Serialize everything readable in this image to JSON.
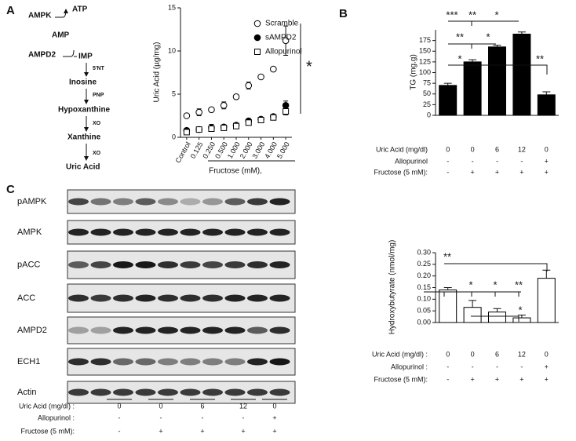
{
  "panels": [
    "A",
    "B",
    "C"
  ],
  "pathway": {
    "nodes": [
      "AMPK",
      "ATP",
      "AMP",
      "AMPD2",
      "IMP",
      "Inosine",
      "Hypoxanthine",
      "Xanthine",
      "Uric Acid"
    ],
    "enzymes": [
      "5'NT",
      "PNP",
      "XO",
      "XO"
    ]
  },
  "chart_data": [
    {
      "type": "scatter",
      "ylabel": "Uric Acid (µg/mg)",
      "xlabel": "Fructose (mM),",
      "categories": [
        "Control",
        "0.125",
        "0.250",
        "0.500",
        "1.000",
        "2.000",
        "3.000",
        "4.000",
        "5.000"
      ],
      "ylim": [
        0,
        15
      ],
      "yticks": [
        0,
        5,
        10,
        15
      ],
      "annotation": "*",
      "series": [
        {
          "name": "Scramble",
          "marker": "open-circle",
          "color": "#000000",
          "values": [
            2.5,
            2.9,
            3.2,
            3.7,
            4.7,
            6.0,
            7.0,
            7.9,
            11.2
          ],
          "errors": [
            0.2,
            0.4,
            0.2,
            0.4,
            0.2,
            0.4,
            0.2,
            0.2,
            1.7
          ]
        },
        {
          "name": "sAMPD2",
          "marker": "filled-circle",
          "color": "#000000",
          "values": [
            0.8,
            0.9,
            1.1,
            1.2,
            1.4,
            1.9,
            2.1,
            2.4,
            3.7
          ],
          "errors": [
            0.2,
            0.2,
            0.4,
            0.2,
            0.2,
            0.2,
            0.2,
            0.2,
            0.5
          ]
        },
        {
          "name": "Allopurinol",
          "marker": "open-square",
          "color": "#000000",
          "values": [
            0.6,
            0.9,
            1.0,
            1.1,
            1.3,
            1.7,
            2.0,
            2.3,
            3.0
          ],
          "errors": [
            0.2,
            0.2,
            0.2,
            0.2,
            0.2,
            0.2,
            0.2,
            0.2,
            0.4
          ]
        }
      ]
    },
    {
      "type": "bar",
      "ylabel": "TG (mg.g)",
      "color": "#000000",
      "outline": "#000000",
      "values": [
        70,
        125,
        160,
        190,
        48
      ],
      "errors": [
        5,
        5,
        4,
        5,
        7
      ],
      "ylim": [
        0,
        200
      ],
      "yticks": [
        0,
        25,
        50,
        75,
        100,
        125,
        150,
        175
      ],
      "significance": [
        "***",
        "**",
        "*",
        "**",
        "*",
        "*",
        "**"
      ],
      "conditions": [
        {
          "label": "Uric Acid (mg/dl)",
          "values": [
            0,
            0,
            6,
            12,
            0
          ]
        },
        {
          "label": "Allopurinol",
          "values": [
            "-",
            "-",
            "-",
            "-",
            "+"
          ]
        },
        {
          "label": "Fructose (5 mM):",
          "values": [
            "-",
            "+",
            "+",
            "+",
            "+"
          ]
        }
      ]
    },
    {
      "type": "bar",
      "ylabel": "Hydroxybutyrate (nmol/mg)",
      "color": "#ffffff",
      "outline": "#000000",
      "values": [
        0.14,
        0.065,
        0.045,
        0.02,
        0.19
      ],
      "errors": [
        0.01,
        0.03,
        0.015,
        0.012,
        0.035
      ],
      "ylim": [
        0,
        0.3
      ],
      "yticks": [
        {
          "value": 0,
          "label": "0.00"
        },
        {
          "value": 0.05,
          "label": "0.05"
        },
        {
          "value": 0.1,
          "label": "0.10"
        },
        {
          "value": 0.15,
          "label": "0.15"
        },
        {
          "value": 0.2,
          "label": "0.20"
        },
        {
          "value": 0.25,
          "label": "0.25"
        },
        {
          "value": 0.3,
          "label": "0.30"
        }
      ],
      "significance": [
        "**",
        "*",
        "*",
        "**",
        "*"
      ],
      "conditions": [
        {
          "label": "Uric Acid (mg/dl) :",
          "values": [
            0,
            0,
            6,
            12,
            0
          ]
        },
        {
          "label": "Allopurinol :",
          "values": [
            "-",
            "-",
            "-",
            "-",
            "+"
          ]
        },
        {
          "label": "Fructose (5 mM):",
          "values": [
            "-",
            "+",
            "+",
            "+",
            "+"
          ]
        }
      ]
    }
  ],
  "blot": {
    "rows": [
      "pAMPK",
      "AMPK",
      "pACC",
      "ACC",
      "AMPD2",
      "ECH1",
      "Actin"
    ],
    "conditions": [
      {
        "label": "Uric Acid (mg/dl) :",
        "values": [
          0,
          0,
          6,
          12,
          0
        ]
      },
      {
        "label": "Allopurinol :",
        "values": [
          "-",
          "-",
          "-",
          "-",
          "+"
        ]
      },
      {
        "label": "Fructose (5 mM):",
        "values": [
          "-",
          "+",
          "+",
          "+",
          "+"
        ]
      }
    ]
  }
}
